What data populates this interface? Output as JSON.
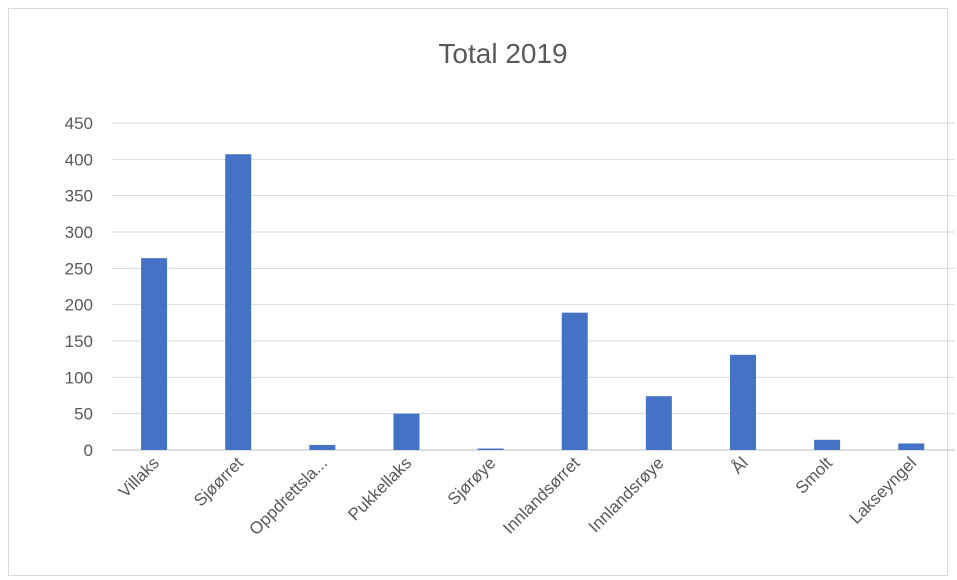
{
  "chart_data": {
    "type": "bar",
    "title": "Total 2019",
    "xlabel": "",
    "ylabel": "",
    "categories": [
      "Villaks",
      "Sjøørret",
      "Oppdrettsla...",
      "Pukkellaks",
      "Sjørøye",
      "Innlandsørret",
      "Innlandsrøye",
      "Ål",
      "Smolt",
      "Lakseyngel"
    ],
    "values": [
      264,
      407,
      7,
      50,
      2,
      189,
      74,
      131,
      14,
      9
    ],
    "ylim": [
      0,
      450
    ],
    "yticks": [
      0,
      50,
      100,
      150,
      200,
      250,
      300,
      350,
      400,
      450
    ],
    "grid": true,
    "bar_color": "#4472c4"
  }
}
